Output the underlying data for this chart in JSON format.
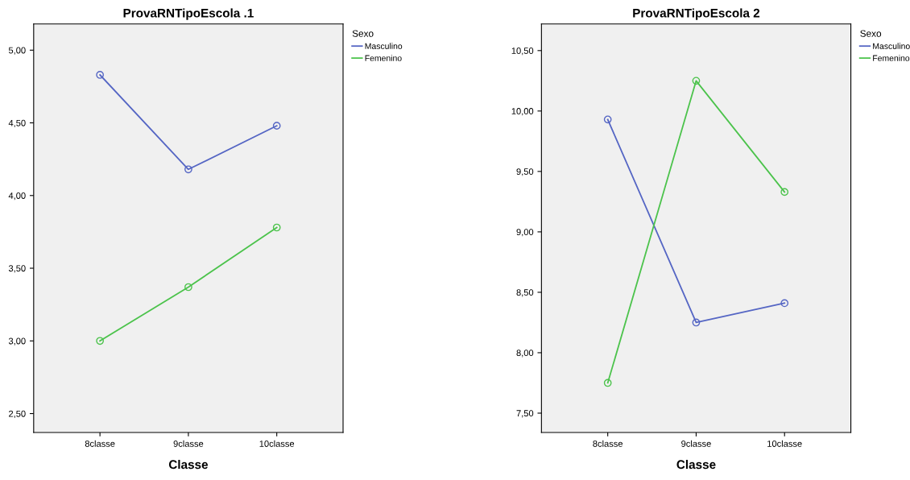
{
  "chart_data": [
    {
      "type": "line",
      "title": "ProvaRNTipoEscola .1",
      "xlabel": "Classe",
      "legend_title": "Sexo",
      "legend": "right",
      "marker": "circle",
      "grid": false,
      "categories": [
        "8classe",
        "9classe",
        "10classe"
      ],
      "ylim": [
        2.37,
        5.18
      ],
      "yticks": [
        {
          "value": 2.5,
          "label": "2,50"
        },
        {
          "value": 3,
          "label": "3,00"
        },
        {
          "value": 3.5,
          "label": "3,50"
        },
        {
          "value": 4,
          "label": "4,00"
        },
        {
          "value": 4.5,
          "label": "4,50"
        },
        {
          "value": 5,
          "label": "5,00"
        }
      ],
      "series": [
        {
          "name": "Masculino",
          "color": "#5566c4",
          "values": [
            4.83,
            4.18,
            4.48
          ]
        },
        {
          "name": "Femenino",
          "color": "#4cc34c",
          "values": [
            3.0,
            3.37,
            3.78
          ]
        }
      ]
    },
    {
      "type": "line",
      "title": "ProvaRNTipoEscola 2",
      "xlabel": "Classe",
      "legend_title": "Sexo",
      "legend": "right",
      "marker": "circle",
      "grid": false,
      "categories": [
        "8classe",
        "9classe",
        "10classe"
      ],
      "ylim": [
        7.34,
        10.72
      ],
      "yticks": [
        {
          "value": 7.5,
          "label": "7,50"
        },
        {
          "value": 8,
          "label": "8,00"
        },
        {
          "value": 8.5,
          "label": "8,50"
        },
        {
          "value": 9,
          "label": "9,00"
        },
        {
          "value": 9.5,
          "label": "9,50"
        },
        {
          "value": 10,
          "label": "10,00"
        },
        {
          "value": 10.5,
          "label": "10,50"
        }
      ],
      "series": [
        {
          "name": "Masculino",
          "color": "#5566c4",
          "values": [
            9.93,
            8.25,
            8.41
          ]
        },
        {
          "name": "Femenino",
          "color": "#4cc34c",
          "values": [
            7.75,
            10.25,
            9.33
          ]
        }
      ]
    }
  ]
}
